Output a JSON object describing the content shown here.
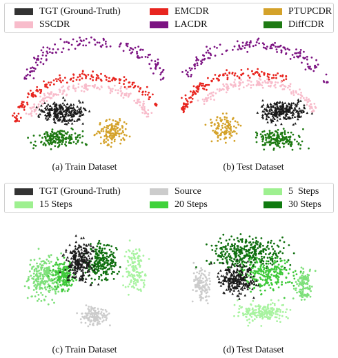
{
  "top": {
    "legend": [
      {
        "label": "TGT (Ground-Truth)",
        "color": "#333333"
      },
      {
        "label": "EMCDR",
        "color": "#e8251f"
      },
      {
        "label": "PTUPCDR",
        "color": "#d4a22a"
      },
      {
        "label": "SSCDR",
        "color": "#f8bccb"
      },
      {
        "label": "LACDR",
        "color": "#7c1382"
      },
      {
        "label": "DiffCDR",
        "color": "#1e7a13"
      }
    ],
    "captions": [
      "(a) Train Dataset",
      "(b) Test Dataset"
    ]
  },
  "bottom": {
    "legend": [
      {
        "label": "TGT (Ground-Truth)",
        "color": "#333333"
      },
      {
        "label": "Source",
        "color": "#cccccc"
      },
      {
        "label": "5  Steps",
        "color": "#9ef090"
      },
      {
        "label": "15 Steps",
        "color": "#9ef090"
      },
      {
        "label": "20 Steps",
        "color": "#3fd23a"
      },
      {
        "label": "30 Steps",
        "color": "#0f7a0f"
      }
    ],
    "captions": [
      "(c) Train Dataset",
      "(d) Test Dataset"
    ]
  },
  "chart_data": [
    {
      "type": "scatter",
      "title": "(a) Train Dataset",
      "series": [
        {
          "name": "LACDR",
          "color": "#7c1382",
          "marker": "dot"
        },
        {
          "name": "EMCDR",
          "color": "#e8251f",
          "marker": "dot"
        },
        {
          "name": "SSCDR",
          "color": "#f8bccb",
          "marker": "dot"
        },
        {
          "name": "PTUPCDR",
          "color": "#d4a22a",
          "marker": "dot"
        },
        {
          "name": "DiffCDR",
          "color": "#1e7a13",
          "marker": "dot"
        },
        {
          "name": "TGT (Ground-Truth)",
          "color": "#1a1a1a",
          "marker": "triangle"
        }
      ]
    },
    {
      "type": "scatter",
      "title": "(b) Test Dataset",
      "series": [
        {
          "name": "LACDR",
          "color": "#7c1382",
          "marker": "dot"
        },
        {
          "name": "EMCDR",
          "color": "#e8251f",
          "marker": "dot"
        },
        {
          "name": "SSCDR",
          "color": "#f8bccb",
          "marker": "dot"
        },
        {
          "name": "PTUPCDR",
          "color": "#d4a22a",
          "marker": "dot"
        },
        {
          "name": "DiffCDR",
          "color": "#1e7a13",
          "marker": "dot"
        },
        {
          "name": "TGT (Ground-Truth)",
          "color": "#1a1a1a",
          "marker": "triangle"
        }
      ]
    },
    {
      "type": "scatter",
      "title": "(c) Train Dataset",
      "series": [
        {
          "name": "15 Steps",
          "color": "#7ee07a",
          "marker": "dot"
        },
        {
          "name": "20 Steps",
          "color": "#3fc93a",
          "marker": "dot"
        },
        {
          "name": "5  Steps",
          "color": "#a8f3a0",
          "marker": "dot"
        },
        {
          "name": "30 Steps",
          "color": "#0f6f0f",
          "marker": "dot"
        },
        {
          "name": "Source",
          "color": "#cccccc",
          "marker": "dot"
        },
        {
          "name": "TGT (Ground-Truth)",
          "color": "#1a1a1a",
          "marker": "triangle"
        }
      ]
    },
    {
      "type": "scatter",
      "title": "(d) Test Dataset",
      "series": [
        {
          "name": "5  Steps",
          "color": "#a8f3a0",
          "marker": "dot"
        },
        {
          "name": "15 Steps",
          "color": "#7ee07a",
          "marker": "dot"
        },
        {
          "name": "Source",
          "color": "#cccccc",
          "marker": "dot"
        },
        {
          "name": "30 Steps",
          "color": "#0f6f0f",
          "marker": "dot"
        },
        {
          "name": "20 Steps",
          "color": "#3fc93a",
          "marker": "dot"
        },
        {
          "name": "TGT (Ground-Truth)",
          "color": "#1a1a1a",
          "marker": "triangle"
        }
      ]
    }
  ]
}
